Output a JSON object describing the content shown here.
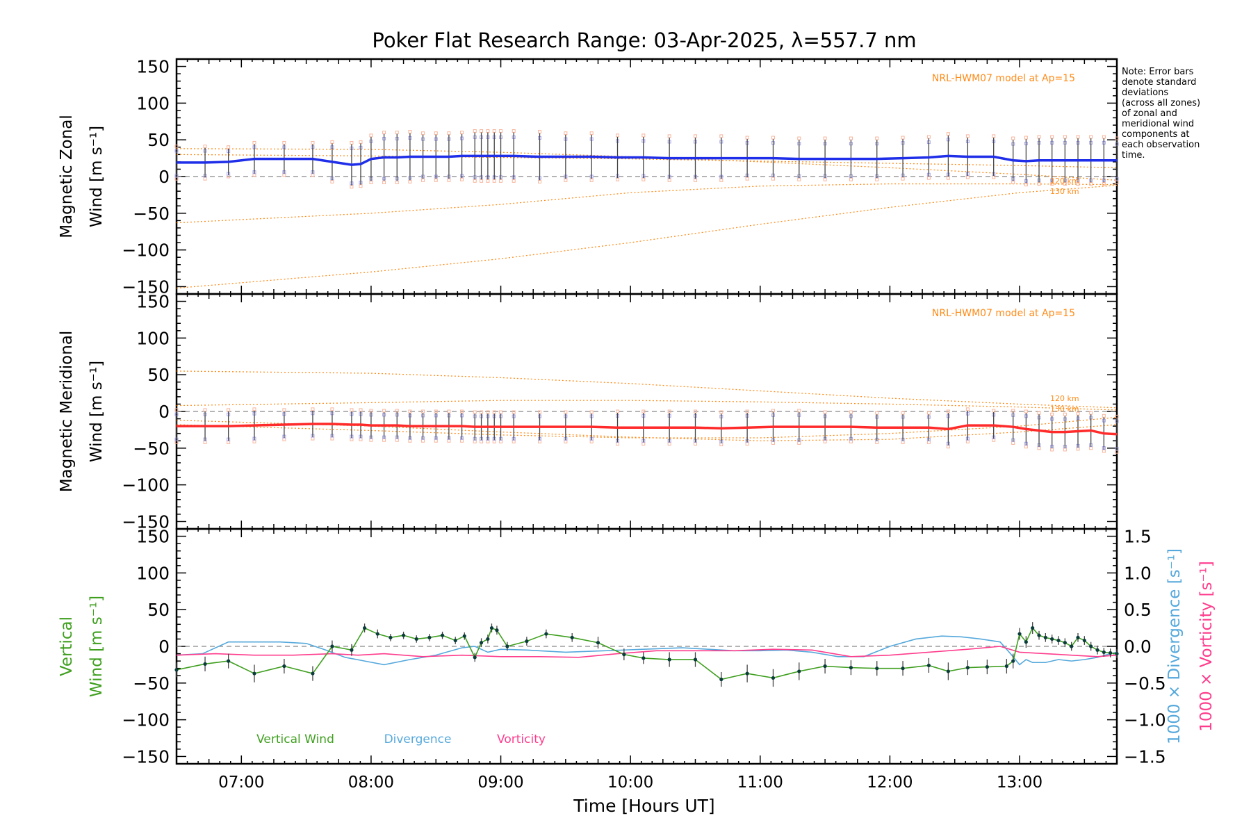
{
  "title": "Poker Flat Research Range: 03-Apr-2025, λ=557.7 nm",
  "note": [
    "Note: Error bars",
    "denote standard",
    "deviations",
    "(across all zones)",
    "of zonal and",
    "meridional wind",
    "components at",
    "each observation",
    "time."
  ],
  "x_axis": {
    "label": "Time [Hours UT]",
    "range_hours": [
      6.5,
      13.75
    ],
    "ticks": [
      {
        "v": 7,
        "label": "07:00"
      },
      {
        "v": 8,
        "label": "08:00"
      },
      {
        "v": 9,
        "label": "09:00"
      },
      {
        "v": 10,
        "label": "10:00"
      },
      {
        "v": 11,
        "label": "11:00"
      },
      {
        "v": 12,
        "label": "12:00"
      },
      {
        "v": 13,
        "label": "13:00"
      }
    ]
  },
  "panels": {
    "zonal": {
      "ylabel_line1": "Magnetic Zonal",
      "ylabel_line2": "Wind [m s⁻¹]",
      "model_label": "NRL-HWM07 model at Ap=15",
      "model_levels": [
        "120 km",
        "130 km"
      ]
    },
    "meridional": {
      "ylabel_line1": "Magnetic Meridional",
      "ylabel_line2": "Wind [m s⁻¹]",
      "model_label": "NRL-HWM07 model at Ap=15",
      "model_levels": [
        "120 km",
        "130 km"
      ]
    },
    "vertical": {
      "ylabel_line1": "Vertical",
      "ylabel_line2": "Wind [m s⁻¹]",
      "right_label_div": "1000 × Divergence [s⁻¹]",
      "right_label_vort": "1000 × Vorticity [s⁻¹]",
      "legend": [
        "Vertical Wind",
        "Divergence",
        "Vorticity"
      ]
    }
  },
  "chart_data": {
    "type": "line",
    "x_units": "hours UT",
    "y_range_wind": [
      -160,
      160
    ],
    "y_ticks_wind": [
      150,
      100,
      50,
      0,
      -50,
      -100,
      -150
    ],
    "y_range_right": [
      -1.6,
      1.6
    ],
    "y_ticks_right": [
      1.5,
      1.0,
      0.5,
      0.0,
      -0.5,
      -1.0,
      -1.5
    ],
    "y_ticklabels_right": [
      "1.5",
      "1.0",
      "0.5",
      "0.0",
      "−0.5",
      "−1.0",
      "−1.5"
    ],
    "colors": {
      "zonal": "#1f2ee8",
      "meridional": "#ff2a2a",
      "vertical": "#3f9f1f",
      "divergence": "#55a8dc",
      "vorticity": "#ff3c8c",
      "model": "#ff8c1a",
      "zone_marker_blue": "#a9a9f0",
      "zone_marker_orange": "#f7b49b"
    },
    "zonal_wind": {
      "x": [
        6.5,
        6.72,
        6.9,
        7.1,
        7.33,
        7.55,
        7.7,
        7.85,
        7.92,
        8.0,
        8.1,
        8.2,
        8.3,
        8.4,
        8.5,
        8.6,
        8.7,
        8.8,
        8.85,
        8.9,
        8.95,
        9.0,
        9.1,
        9.3,
        9.5,
        9.7,
        9.9,
        10.1,
        10.3,
        10.5,
        10.7,
        10.9,
        11.1,
        11.3,
        11.5,
        11.7,
        11.9,
        12.1,
        12.3,
        12.45,
        12.6,
        12.8,
        12.95,
        13.05,
        13.15,
        13.25,
        13.35,
        13.45,
        13.55,
        13.65,
        13.75
      ],
      "y": [
        19,
        19,
        20,
        24,
        24,
        24,
        20,
        16,
        17,
        24,
        26,
        26,
        27,
        27,
        27,
        27,
        28,
        28,
        28,
        28,
        28,
        28,
        28,
        27,
        27,
        27,
        26,
        26,
        25,
        25,
        25,
        25,
        25,
        24,
        24,
        24,
        24,
        25,
        26,
        28,
        27,
        27,
        22,
        21,
        22,
        22,
        22,
        22,
        22,
        22,
        22
      ],
      "err": [
        20,
        20,
        18,
        20,
        20,
        20,
        25,
        28,
        28,
        30,
        32,
        32,
        32,
        30,
        30,
        30,
        30,
        32,
        32,
        32,
        32,
        32,
        32,
        32,
        30,
        30,
        28,
        28,
        28,
        28,
        28,
        26,
        26,
        26,
        26,
        26,
        26,
        26,
        26,
        28,
        26,
        26,
        28,
        30,
        30,
        30,
        30,
        30,
        30,
        30,
        28
      ]
    },
    "meridional_wind": {
      "x": [
        6.5,
        6.72,
        6.9,
        7.1,
        7.33,
        7.55,
        7.7,
        7.85,
        7.92,
        8.0,
        8.1,
        8.2,
        8.3,
        8.4,
        8.5,
        8.6,
        8.7,
        8.8,
        8.85,
        8.9,
        8.95,
        9.0,
        9.1,
        9.3,
        9.5,
        9.7,
        9.9,
        10.1,
        10.3,
        10.5,
        10.7,
        10.9,
        11.1,
        11.3,
        11.5,
        11.7,
        11.9,
        12.1,
        12.3,
        12.45,
        12.6,
        12.8,
        12.95,
        13.05,
        13.15,
        13.25,
        13.35,
        13.45,
        13.55,
        13.65,
        13.75
      ],
      "y": [
        -20,
        -20,
        -20,
        -19,
        -18,
        -17,
        -17,
        -18,
        -18,
        -19,
        -19,
        -19,
        -20,
        -20,
        -20,
        -20,
        -20,
        -21,
        -21,
        -21,
        -21,
        -21,
        -21,
        -21,
        -21,
        -21,
        -22,
        -22,
        -22,
        -22,
        -23,
        -22,
        -21,
        -21,
        -21,
        -21,
        -22,
        -22,
        -22,
        -24,
        -19,
        -19,
        -21,
        -24,
        -26,
        -28,
        -28,
        -27,
        -26,
        -30,
        -31
      ],
      "err": [
        20,
        20,
        20,
        20,
        18,
        18,
        18,
        18,
        18,
        18,
        18,
        18,
        18,
        18,
        18,
        18,
        18,
        18,
        18,
        18,
        18,
        18,
        18,
        18,
        18,
        18,
        20,
        20,
        20,
        20,
        20,
        20,
        20,
        20,
        18,
        18,
        18,
        18,
        18,
        22,
        20,
        18,
        20,
        22,
        22,
        22,
        22,
        22,
        22,
        22,
        22
      ]
    },
    "model_zonal_120km": {
      "x": [
        6.5,
        8,
        9,
        10,
        11,
        12,
        13,
        13.75
      ],
      "y": [
        38,
        37,
        33,
        27,
        20,
        12,
        3,
        -5
      ]
    },
    "model_zonal_130km": {
      "x": [
        6.5,
        8,
        9,
        10,
        11,
        12,
        13,
        13.75
      ],
      "y": [
        -63,
        -50,
        -38,
        -22,
        -13,
        -10,
        -10,
        -11
      ]
    },
    "model_zonal_3": {
      "x": [
        6.5,
        8,
        9,
        10,
        11,
        12,
        13,
        13.75
      ],
      "y": [
        -152,
        -130,
        -112,
        -90,
        -65,
        -42,
        -22,
        -12
      ]
    },
    "model_zonal_4": {
      "x": [
        6.5,
        8,
        9,
        10,
        11,
        12,
        13,
        13.75
      ],
      "y": [
        30,
        28,
        26,
        24,
        21,
        18,
        15,
        12
      ]
    },
    "model_merid_a": {
      "x": [
        6.5,
        8,
        9,
        10,
        11,
        12,
        13,
        13.75
      ],
      "y": [
        55,
        52,
        46,
        38,
        28,
        18,
        10,
        5
      ]
    },
    "model_merid_b": {
      "x": [
        6.5,
        8,
        9,
        10,
        11,
        12,
        13,
        13.75
      ],
      "y": [
        8,
        12,
        15,
        15,
        13,
        10,
        6,
        2
      ]
    },
    "model_merid_c": {
      "x": [
        6.5,
        8,
        9,
        10,
        11,
        12,
        13,
        13.75
      ],
      "y": [
        -12,
        -20,
        -28,
        -35,
        -40,
        -38,
        -28,
        -18
      ]
    },
    "model_merid_d": {
      "x": [
        6.5,
        8,
        9,
        10,
        11,
        12,
        13,
        13.75
      ],
      "y": [
        -18,
        -26,
        -32,
        -36,
        -36,
        -30,
        -20,
        -8
      ]
    },
    "vertical_wind": {
      "x": [
        6.5,
        6.72,
        6.9,
        7.1,
        7.33,
        7.55,
        7.7,
        7.85,
        7.95,
        8.05,
        8.15,
        8.25,
        8.35,
        8.45,
        8.55,
        8.65,
        8.72,
        8.8,
        8.85,
        8.9,
        8.93,
        8.97,
        9.05,
        9.2,
        9.35,
        9.55,
        9.75,
        9.95,
        10.1,
        10.3,
        10.5,
        10.7,
        10.9,
        11.1,
        11.3,
        11.5,
        11.7,
        11.9,
        12.1,
        12.3,
        12.45,
        12.6,
        12.75,
        12.9,
        12.95,
        13.0,
        13.05,
        13.1,
        13.15,
        13.2,
        13.25,
        13.3,
        13.35,
        13.4,
        13.45,
        13.5,
        13.55,
        13.6,
        13.65,
        13.7,
        13.75
      ],
      "y": [
        -32,
        -24,
        -20,
        -37,
        -27,
        -37,
        0,
        -5,
        25,
        17,
        12,
        15,
        10,
        12,
        15,
        8,
        14,
        -15,
        5,
        10,
        25,
        22,
        0,
        7,
        17,
        12,
        5,
        -11,
        -16,
        -18,
        -18,
        -45,
        -37,
        -43,
        -34,
        -27,
        -29,
        -30,
        -30,
        -26,
        -34,
        -29,
        -28,
        -27,
        -20,
        17,
        6,
        25,
        15,
        12,
        10,
        8,
        5,
        0,
        12,
        8,
        0,
        -5,
        -8,
        -9,
        -10
      ],
      "err": [
        10,
        10,
        10,
        12,
        10,
        10,
        8,
        8,
        6,
        6,
        5,
        5,
        5,
        5,
        5,
        5,
        5,
        6,
        6,
        6,
        6,
        6,
        6,
        6,
        6,
        6,
        8,
        8,
        8,
        10,
        10,
        10,
        12,
        12,
        12,
        10,
        10,
        10,
        10,
        10,
        12,
        10,
        10,
        10,
        10,
        8,
        8,
        8,
        6,
        6,
        6,
        6,
        6,
        6,
        6,
        6,
        6,
        6,
        6,
        6,
        6
      ]
    },
    "divergence": {
      "x": [
        6.5,
        6.7,
        6.9,
        7.1,
        7.3,
        7.5,
        7.65,
        7.8,
        7.95,
        8.1,
        8.3,
        8.5,
        8.7,
        8.8,
        8.9,
        9.0,
        9.2,
        9.5,
        9.8,
        10.1,
        10.4,
        10.6,
        10.8,
        11.0,
        11.2,
        11.4,
        11.6,
        11.8,
        12.0,
        12.2,
        12.4,
        12.55,
        12.7,
        12.85,
        12.93,
        13.0,
        13.05,
        13.1,
        13.2,
        13.3,
        13.4,
        13.5,
        13.6,
        13.7,
        13.75
      ],
      "y": [
        -0.12,
        -0.1,
        0.06,
        0.06,
        0.06,
        0.04,
        -0.05,
        -0.15,
        -0.2,
        -0.25,
        -0.18,
        -0.12,
        -0.02,
        0.0,
        -0.08,
        -0.04,
        -0.05,
        -0.08,
        -0.06,
        -0.04,
        -0.02,
        -0.04,
        -0.06,
        -0.06,
        -0.05,
        -0.08,
        -0.14,
        -0.14,
        0.0,
        0.1,
        0.14,
        0.13,
        0.1,
        0.06,
        -0.1,
        -0.25,
        -0.18,
        -0.22,
        -0.22,
        -0.18,
        -0.2,
        -0.18,
        -0.15,
        -0.1,
        -0.08
      ]
    },
    "vorticity": {
      "x": [
        6.5,
        6.8,
        7.1,
        7.4,
        7.7,
        7.9,
        8.1,
        8.4,
        8.7,
        9.0,
        9.3,
        9.6,
        9.9,
        10.2,
        10.5,
        10.8,
        11.1,
        11.4,
        11.7,
        12.0,
        12.3,
        12.6,
        12.85,
        13.0,
        13.2,
        13.4,
        13.6,
        13.75
      ],
      "y": [
        -0.12,
        -0.1,
        -0.12,
        -0.12,
        -0.1,
        -0.12,
        -0.1,
        -0.14,
        -0.12,
        -0.14,
        -0.14,
        -0.15,
        -0.1,
        -0.06,
        -0.06,
        -0.06,
        -0.04,
        -0.05,
        -0.14,
        -0.12,
        -0.08,
        -0.04,
        0.0,
        -0.08,
        -0.1,
        -0.12,
        -0.14,
        -0.12
      ]
    }
  }
}
